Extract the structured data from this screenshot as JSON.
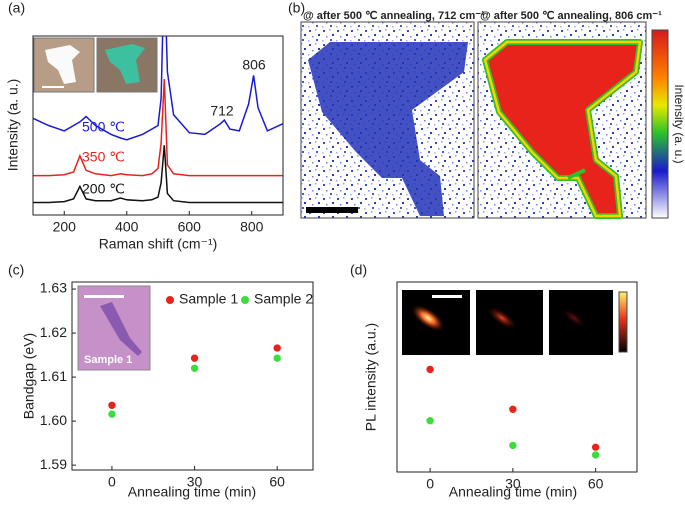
{
  "chart_data": [
    {
      "type": "line",
      "panel": "(a)",
      "xlabel": "Raman shift (cm⁻¹)",
      "ylabel": "Intensity (a. u.)",
      "x": [
        100,
        150,
        200,
        230,
        250,
        270,
        300,
        350,
        380,
        400,
        450,
        480,
        500,
        510,
        520,
        530,
        550,
        600,
        650,
        700,
        712,
        730,
        760,
        790,
        806,
        820,
        850,
        900
      ],
      "series": [
        {
          "name": "500 ℃",
          "color": "#1a1ad6",
          "values": [
            5.4,
            5.0,
            4.7,
            5.0,
            5.2,
            5.5,
            5.0,
            4.5,
            4.3,
            4.2,
            4.5,
            4.8,
            5.0,
            6.5,
            14,
            8,
            5.6,
            4.6,
            4.5,
            5.1,
            5.3,
            4.8,
            4.7,
            6.2,
            7.8,
            6.0,
            4.7,
            5.1
          ]
        },
        {
          "name": "350 ℃",
          "color": "#e8231c",
          "values": [
            2.2,
            2.2,
            2.25,
            2.4,
            3.3,
            2.5,
            2.3,
            2.2,
            2.3,
            2.25,
            2.2,
            2.3,
            2.6,
            4.0,
            7.6,
            2.8,
            2.3,
            2.2,
            2.2,
            2.2,
            2.2,
            2.2,
            2.2,
            2.2,
            2.2,
            2.2,
            2.2,
            2.2
          ]
        },
        {
          "name": "200 ℃",
          "color": "#111111",
          "values": [
            0.7,
            0.7,
            0.75,
            0.9,
            1.6,
            0.9,
            0.8,
            0.8,
            0.95,
            0.85,
            0.8,
            0.85,
            1.0,
            1.8,
            3.9,
            1.2,
            0.8,
            0.7,
            0.7,
            0.7,
            0.7,
            0.7,
            0.7,
            0.7,
            0.7,
            0.7,
            0.7,
            0.7
          ]
        }
      ],
      "annotations": [
        "712",
        "806"
      ],
      "xlim": [
        100,
        900
      ],
      "xticks": [
        200,
        400,
        600,
        800
      ],
      "ylim": [
        0,
        10
      ]
    },
    {
      "type": "image",
      "panel": "(b)",
      "titles": [
        "@ after 500 ℃ annealing, 712 cm⁻¹",
        "@ after 500 ℃ annealing, 806 cm⁻¹"
      ],
      "colorbar_label": "Intensity (a. u.)"
    },
    {
      "type": "scatter",
      "panel": "(c)",
      "xlabel": "Annealing time (min)",
      "ylabel": "Bandgap (eV)",
      "inset_label": "Sample 1",
      "x": [
        0,
        30,
        60
      ],
      "series": [
        {
          "name": "Sample 1",
          "color": "#e8231c",
          "values": [
            1.6036,
            1.6143,
            1.6166
          ]
        },
        {
          "name": "Sample 2",
          "color": "#3ddc3d",
          "values": [
            1.6016,
            1.612,
            1.6143
          ]
        }
      ],
      "xlim": [
        -14.5,
        73
      ],
      "xticks": [
        0,
        30,
        60
      ],
      "ylim": [
        1.5889,
        1.6316
      ],
      "yticks": [
        1.59,
        {
          "value": 1.6,
          "label": "1.60"
        },
        1.61,
        1.62,
        1.63
      ]
    },
    {
      "type": "scatter",
      "panel": "(d)",
      "xlabel": "Annealing time (min)",
      "ylabel": "PL intensity (a.u.)",
      "x": [
        0,
        30,
        60
      ],
      "series": [
        {
          "color": "#e8231c",
          "values": [
            0.54,
            0.33,
            0.13
          ]
        },
        {
          "color": "#3ddc3d",
          "values": [
            0.27,
            0.14,
            0.09
          ]
        }
      ],
      "xlim": [
        -12,
        75
      ],
      "xticks": [
        0,
        30,
        60
      ],
      "ylim": [
        0,
        1
      ]
    }
  ]
}
